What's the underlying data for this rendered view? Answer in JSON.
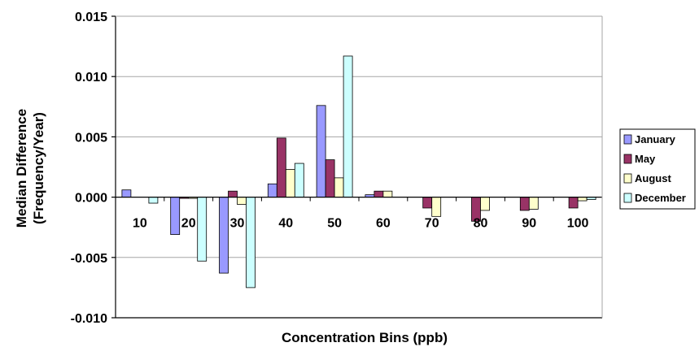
{
  "chart_data": {
    "type": "bar",
    "title": "",
    "xlabel": "Concentration Bins (ppb)",
    "ylabel_lines": [
      "Median Difference",
      "(Frequency/Year)"
    ],
    "categories": [
      "10",
      "20",
      "30",
      "40",
      "50",
      "60",
      "70",
      "80",
      "90",
      "100"
    ],
    "y_ticks": [
      "0.015",
      "0.010",
      "0.005",
      "0.000",
      "-0.005",
      "-0.010"
    ],
    "ylim": [
      -0.01,
      0.015
    ],
    "grid": true,
    "legend_position": "right",
    "series": [
      {
        "name": "January",
        "color": "#9999ff",
        "values": [
          0.0006,
          -0.0031,
          -0.0063,
          0.0011,
          0.0076,
          0.0002,
          0.0,
          0.0,
          0.0,
          0.0
        ]
      },
      {
        "name": "May",
        "color": "#993366",
        "values": [
          0.0,
          -0.0001,
          0.0005,
          0.0049,
          0.0031,
          0.0005,
          -0.0009,
          -0.002,
          -0.0011,
          -0.0009
        ]
      },
      {
        "name": "August",
        "color": "#ffffcc",
        "values": [
          0.0,
          -0.0001,
          -0.0006,
          0.0023,
          0.0016,
          0.0005,
          -0.0016,
          -0.0011,
          -0.001,
          -0.0003
        ]
      },
      {
        "name": "December",
        "color": "#ccffff",
        "values": [
          -0.0005,
          -0.0053,
          -0.0075,
          0.0028,
          0.0117,
          0.0,
          0.0,
          0.0,
          0.0,
          -0.0002
        ]
      }
    ]
  }
}
